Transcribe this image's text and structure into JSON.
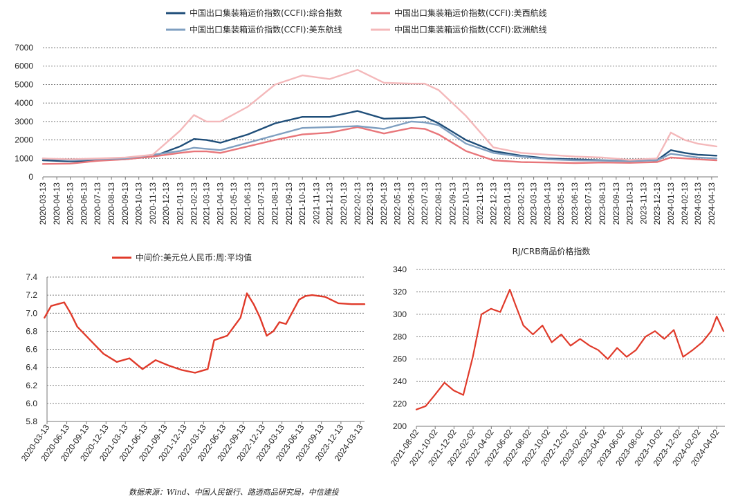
{
  "source_note": "数据来源：Wind、中国人民银行、路透商品研究局，中信建投",
  "chart_data": [
    {
      "type": "line",
      "title": "",
      "ylim": [
        0,
        7000
      ],
      "yticks": [
        0,
        1000,
        2000,
        3000,
        4000,
        5000,
        6000,
        7000
      ],
      "grid": true,
      "legend_position": "top",
      "x_ticks": [
        "2020-03-13",
        "2020-04-13",
        "2020-05-13",
        "2020-06-13",
        "2020-07-13",
        "2020-08-13",
        "2020-09-13",
        "2020-10-13",
        "2020-11-13",
        "2020-12-13",
        "2021-01-13",
        "2021-02-13",
        "2021-03-13",
        "2021-04-13",
        "2021-05-13",
        "2021-06-13",
        "2021-07-13",
        "2021-08-13",
        "2021-09-13",
        "2021-10-13",
        "2021-11-13",
        "2021-12-13",
        "2022-01-13",
        "2022-02-13",
        "2022-03-13",
        "2022-04-13",
        "2022-05-13",
        "2022-06-13",
        "2022-07-13",
        "2022-08-13",
        "2022-09-13",
        "2022-10-13",
        "2022-11-13",
        "2022-12-13",
        "2023-01-13",
        "2023-02-13",
        "2023-03-13",
        "2023-04-13",
        "2023-05-13",
        "2023-06-13",
        "2023-07-13",
        "2023-08-13",
        "2023-09-13",
        "2023-10-13",
        "2023-11-13",
        "2023-12-13",
        "2024-01-13",
        "2024-02-13",
        "2024-03-13",
        "2024-04-13"
      ],
      "x": [
        "2020-03-13",
        "2020-05-13",
        "2020-07-13",
        "2020-09-13",
        "2020-11-13",
        "2021-01-13",
        "2021-02-13",
        "2021-03-13",
        "2021-04-13",
        "2021-06-13",
        "2021-08-13",
        "2021-10-13",
        "2021-12-13",
        "2022-02-13",
        "2022-04-13",
        "2022-06-13",
        "2022-07-13",
        "2022-08-13",
        "2022-10-13",
        "2022-12-13",
        "2023-02-13",
        "2023-04-13",
        "2023-06-13",
        "2023-08-13",
        "2023-10-13",
        "2023-12-13",
        "2024-01-13",
        "2024-02-13",
        "2024-03-13",
        "2024-04-24"
      ],
      "series": [
        {
          "name": "中国出口集装箱运价指数(CCFI):综合指数",
          "color": "#1f4e79",
          "values": [
            900,
            840,
            900,
            960,
            1100,
            1650,
            2050,
            2000,
            1850,
            2300,
            2900,
            3250,
            3250,
            3570,
            3150,
            3200,
            3250,
            2900,
            2000,
            1400,
            1150,
            1000,
            950,
            900,
            870,
            900,
            1450,
            1300,
            1200,
            1150
          ]
        },
        {
          "name": "中国出口集装箱运价指数(CCFI):美西航线",
          "color": "#e8767a",
          "values": [
            700,
            720,
            870,
            950,
            1100,
            1300,
            1380,
            1380,
            1300,
            1650,
            2000,
            2300,
            2400,
            2700,
            2350,
            2650,
            2600,
            2300,
            1400,
            900,
            800,
            780,
            750,
            780,
            760,
            800,
            1050,
            1000,
            950,
            900
          ]
        },
        {
          "name": "中国出口集装箱运价指数(CCFI):美东航线",
          "color": "#7f9fc0",
          "values": [
            1000,
            900,
            950,
            1000,
            1200,
            1400,
            1580,
            1520,
            1450,
            1850,
            2250,
            2650,
            2700,
            2750,
            2600,
            3000,
            2950,
            2800,
            1800,
            1300,
            1100,
            950,
            900,
            880,
            850,
            900,
            1250,
            1150,
            1050,
            1000
          ]
        },
        {
          "name": "中国出口集装箱运价指数(CCFI):欧洲航线",
          "color": "#f4b8ba",
          "values": [
            1000,
            950,
            1000,
            1050,
            1200,
            2500,
            3350,
            3000,
            3000,
            3800,
            5000,
            5500,
            5300,
            5800,
            5100,
            5050,
            5050,
            4700,
            3300,
            1600,
            1300,
            1200,
            1100,
            1050,
            920,
            1000,
            2400,
            2000,
            1800,
            1650
          ]
        }
      ]
    },
    {
      "type": "line",
      "title": "",
      "ylim": [
        5.8,
        7.4
      ],
      "yticks": [
        5.8,
        6.0,
        6.2,
        6.4,
        6.6,
        6.8,
        7.0,
        7.2,
        7.4
      ],
      "grid": true,
      "legend_position": "top",
      "x_ticks": [
        "2020-03-13",
        "2020-06-13",
        "2020-09-13",
        "2020-12-13",
        "2021-03-13",
        "2021-06-13",
        "2021-09-13",
        "2021-12-13",
        "2022-03-13",
        "2022-06-13",
        "2022-09-13",
        "2022-12-13",
        "2023-03-13",
        "2023-06-13",
        "2023-09-13",
        "2023-12-13",
        "2024-03-13"
      ],
      "x": [
        "2020-03",
        "2020-04",
        "2020-06",
        "2020-07",
        "2020-08",
        "2020-10",
        "2020-12",
        "2021-02",
        "2021-04",
        "2021-06",
        "2021-08",
        "2021-10",
        "2021-12",
        "2022-02",
        "2022-04",
        "2022-05",
        "2022-07",
        "2022-09",
        "2022-10",
        "2022-11",
        "2022-12",
        "2023-01",
        "2023-02",
        "2023-03",
        "2023-04",
        "2023-06",
        "2023-07",
        "2023-08",
        "2023-10",
        "2023-12",
        "2024-02",
        "2024-04"
      ],
      "series": [
        {
          "name": "中间价:美元兑人民币:周:平均值",
          "color": "#e03a2a",
          "values": [
            6.95,
            7.08,
            7.12,
            7.0,
            6.85,
            6.7,
            6.55,
            6.46,
            6.5,
            6.38,
            6.48,
            6.42,
            6.37,
            6.34,
            6.38,
            6.7,
            6.75,
            6.95,
            7.22,
            7.1,
            6.95,
            6.75,
            6.8,
            6.9,
            6.88,
            7.15,
            7.19,
            7.2,
            7.18,
            7.11,
            7.1,
            7.1
          ]
        }
      ]
    },
    {
      "type": "line",
      "title": "RJ/CRB商品价格指数",
      "ylim": [
        200,
        340
      ],
      "yticks": [
        200,
        220,
        240,
        260,
        280,
        300,
        320,
        340
      ],
      "grid": true,
      "x_ticks": [
        "2021-08-02",
        "2021-10-02",
        "2021-12-02",
        "2022-02-02",
        "2022-04-02",
        "2022-06-02",
        "2022-08-02",
        "2022-10-02",
        "2022-12-02",
        "2023-02-02",
        "2023-04-02",
        "2023-06-02",
        "2023-08-02",
        "2023-10-02",
        "2023-12-02",
        "2024-02-02",
        "2024-04-02"
      ],
      "x": [
        "2021-08-02",
        "2021-09-01",
        "2021-10-01",
        "2021-11-01",
        "2021-12-01",
        "2022-01-01",
        "2022-02-01",
        "2022-03-01",
        "2022-04-01",
        "2022-05-01",
        "2022-06-01",
        "2022-06-20",
        "2022-07-15",
        "2022-08-15",
        "2022-09-15",
        "2022-10-15",
        "2022-11-15",
        "2022-12-15",
        "2023-01-15",
        "2023-02-15",
        "2023-03-15",
        "2023-04-15",
        "2023-05-15",
        "2023-06-15",
        "2023-07-15",
        "2023-08-15",
        "2023-09-15",
        "2023-10-15",
        "2023-11-15",
        "2023-12-15",
        "2024-01-15",
        "2024-02-15",
        "2024-03-15",
        "2024-04-02",
        "2024-04-24"
      ],
      "series": [
        {
          "name": "",
          "color": "#e03a2a",
          "values": [
            215,
            218,
            228,
            239,
            232,
            228,
            262,
            300,
            305,
            302,
            322,
            308,
            290,
            282,
            290,
            275,
            282,
            272,
            278,
            272,
            268,
            260,
            270,
            262,
            268,
            280,
            285,
            278,
            286,
            262,
            268,
            275,
            285,
            298,
            285
          ]
        }
      ]
    }
  ]
}
